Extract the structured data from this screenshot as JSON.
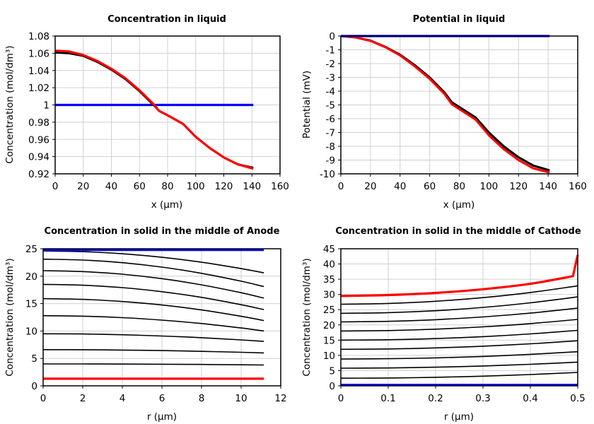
{
  "chart_data": [
    {
      "type": "line",
      "title": "Concentration in liquid",
      "xlabel": "x (µm)",
      "ylabel": "Concentration (mol/dm³)",
      "xlim": [
        0,
        160
      ],
      "ylim": [
        0.92,
        1.08
      ],
      "xticks": [
        0,
        20,
        40,
        60,
        80,
        100,
        120,
        140,
        160
      ],
      "xtick_labels": [
        "0",
        "20",
        "40",
        "60",
        "80",
        "100",
        "120",
        "140",
        "160"
      ],
      "yticks": [
        0.92,
        0.94,
        0.96,
        0.98,
        1.0,
        1.02,
        1.04,
        1.06,
        1.08
      ],
      "ytick_labels": [
        "0.92",
        "0.94",
        "0.96",
        "0.98",
        "1",
        "1.02",
        "1.04",
        "1.06",
        "1.08"
      ],
      "grid": true,
      "series": [
        {
          "color": "#0000ff",
          "x": [
            0,
            141
          ],
          "y": [
            1.0,
            1.0
          ]
        },
        {
          "color": "#000000",
          "x": [
            0,
            10,
            20,
            30,
            40,
            50,
            60,
            70,
            74,
            80,
            91,
            100,
            110,
            120,
            130,
            141
          ],
          "y": [
            1.061,
            1.06,
            1.057,
            1.05,
            1.041,
            1.03,
            1.016,
            1.0,
            0.993,
            0.988,
            0.978,
            0.963,
            0.95,
            0.939,
            0.931,
            0.927
          ]
        },
        {
          "color": "#ff0000",
          "x": [
            0,
            10,
            20,
            30,
            40,
            50,
            60,
            70,
            74,
            80,
            91,
            100,
            110,
            120,
            130,
            141
          ],
          "y": [
            1.063,
            1.062,
            1.058,
            1.051,
            1.042,
            1.031,
            1.017,
            1.001,
            0.993,
            0.988,
            0.978,
            0.963,
            0.95,
            0.939,
            0.931,
            0.926
          ]
        }
      ]
    },
    {
      "type": "line",
      "title": "Potential in liquid",
      "xlabel": "x (µm)",
      "ylabel": "Potential (mV)",
      "xlim": [
        0,
        160
      ],
      "ylim": [
        -10,
        0
      ],
      "xticks": [
        0,
        20,
        40,
        60,
        80,
        100,
        120,
        140,
        160
      ],
      "xtick_labels": [
        "0",
        "20",
        "40",
        "60",
        "80",
        "100",
        "120",
        "140",
        "160"
      ],
      "yticks": [
        0,
        -1,
        -2,
        -3,
        -4,
        -5,
        -6,
        -7,
        -8,
        -9,
        -10
      ],
      "ytick_labels": [
        "0",
        "-1",
        "-2",
        "-3",
        "-4",
        "-5",
        "-6",
        "-7",
        "-8",
        "-9",
        "-10"
      ],
      "grid": true,
      "series": [
        {
          "color": "#000000",
          "x": [
            0,
            10,
            20,
            30,
            40,
            50,
            60,
            70,
            75,
            80,
            91,
            100,
            110,
            120,
            130,
            141
          ],
          "y": [
            0,
            -0.1,
            -0.33,
            -0.78,
            -1.35,
            -2.12,
            -3.0,
            -4.1,
            -4.8,
            -5.15,
            -5.9,
            -7.0,
            -8.0,
            -8.8,
            -9.4,
            -9.75
          ]
        },
        {
          "color": "#ff0000",
          "x": [
            0,
            10,
            20,
            30,
            40,
            50,
            60,
            70,
            75,
            80,
            91,
            100,
            110,
            120,
            130,
            141
          ],
          "y": [
            0,
            -0.1,
            -0.35,
            -0.8,
            -1.4,
            -2.2,
            -3.1,
            -4.2,
            -4.95,
            -5.3,
            -6.05,
            -7.2,
            -8.2,
            -9.0,
            -9.6,
            -9.9
          ]
        },
        {
          "color": "#0000ff",
          "x": [
            0,
            141
          ],
          "y": [
            0,
            0
          ]
        }
      ]
    },
    {
      "type": "line",
      "title": "Concentration in solid in the middle of Anode",
      "xlabel": "r (µm)",
      "ylabel": "Concentration (mol/dm³)",
      "xlim": [
        0,
        12
      ],
      "ylim": [
        0,
        25
      ],
      "xticks": [
        0,
        2,
        4,
        6,
        8,
        10,
        12
      ],
      "xtick_labels": [
        "0",
        "2",
        "4",
        "6",
        "8",
        "10",
        "12"
      ],
      "yticks": [
        0,
        5,
        10,
        15,
        20,
        25
      ],
      "ytick_labels": [
        "0",
        "5",
        "10",
        "15",
        "20",
        "25"
      ],
      "grid": true,
      "series": [
        {
          "color": "#000000",
          "x": [
            0,
            2,
            4,
            6,
            8,
            10,
            11.15
          ],
          "y": [
            24.6,
            24.47,
            24.08,
            23.44,
            22.54,
            21.38,
            20.6
          ]
        },
        {
          "color": "#000000",
          "x": [
            0,
            2,
            4,
            6,
            8,
            10,
            11.15
          ],
          "y": [
            23.1,
            22.94,
            22.46,
            21.65,
            20.52,
            19.08,
            18.1
          ]
        },
        {
          "color": "#000000",
          "x": [
            0,
            2,
            4,
            6,
            8,
            10,
            11.15
          ],
          "y": [
            21.0,
            20.84,
            20.36,
            19.55,
            18.42,
            16.98,
            16.0
          ]
        },
        {
          "color": "#000000",
          "x": [
            0,
            2,
            4,
            6,
            8,
            10,
            11.15
          ],
          "y": [
            18.5,
            18.35,
            17.91,
            17.17,
            16.13,
            14.8,
            13.9
          ]
        },
        {
          "color": "#000000",
          "x": [
            0,
            2,
            4,
            6,
            8,
            10,
            11.15
          ],
          "y": [
            15.9,
            15.77,
            15.38,
            14.74,
            13.84,
            12.68,
            11.9
          ]
        },
        {
          "color": "#000000",
          "x": [
            0,
            2,
            4,
            6,
            8,
            10,
            11.15
          ],
          "y": [
            12.8,
            12.71,
            12.44,
            11.99,
            11.36,
            10.55,
            10.0
          ]
        },
        {
          "color": "#000000",
          "x": [
            0,
            2,
            4,
            6,
            8,
            10,
            11.15
          ],
          "y": [
            9.5,
            9.46,
            9.32,
            9.09,
            8.78,
            8.37,
            8.1
          ]
        },
        {
          "color": "#000000",
          "x": [
            0,
            2,
            4,
            6,
            8,
            10,
            11.15
          ],
          "y": [
            6.6,
            6.58,
            6.52,
            6.43,
            6.29,
            6.12,
            6.0
          ]
        },
        {
          "color": "#000000",
          "x": [
            0,
            2,
            4,
            6,
            8,
            10,
            11.15
          ],
          "y": [
            4.0,
            3.99,
            3.97,
            3.94,
            3.9,
            3.84,
            3.8
          ]
        },
        {
          "color": "#0000ff",
          "x": [
            0,
            11.15
          ],
          "y": [
            24.8,
            24.8
          ]
        },
        {
          "color": "#ff0000",
          "x": [
            0,
            11.15
          ],
          "y": [
            1.3,
            1.3
          ]
        }
      ]
    },
    {
      "type": "line",
      "title": "Concentration in solid in the middle of Cathode",
      "xlabel": "r (µm)",
      "ylabel": "Concentration (mol/dm³)",
      "xlim": [
        0,
        0.5
      ],
      "ylim": [
        0,
        45
      ],
      "xticks": [
        0,
        0.1,
        0.2,
        0.3,
        0.4,
        0.5
      ],
      "xtick_labels": [
        "0",
        "0.1",
        "0.2",
        "0.3",
        "0.4",
        "0.5"
      ],
      "yticks": [
        0,
        5,
        10,
        15,
        20,
        25,
        30,
        35,
        40,
        45
      ],
      "ytick_labels": [
        "0",
        "5",
        "10",
        "15",
        "20",
        "25",
        "30",
        "35",
        "40",
        "45"
      ],
      "grid": true,
      "series": [
        {
          "color": "#000000",
          "x": [
            0,
            0.1,
            0.2,
            0.3,
            0.4,
            0.5
          ],
          "y": [
            26.8,
            27.04,
            27.76,
            28.96,
            30.64,
            32.8
          ]
        },
        {
          "color": "#000000",
          "x": [
            0,
            0.1,
            0.2,
            0.3,
            0.4,
            0.5
          ],
          "y": [
            23.8,
            24.02,
            24.66,
            25.74,
            27.26,
            29.2
          ]
        },
        {
          "color": "#000000",
          "x": [
            0,
            0.1,
            0.2,
            0.3,
            0.4,
            0.5
          ],
          "y": [
            21.0,
            21.18,
            21.72,
            22.62,
            23.88,
            25.5
          ]
        },
        {
          "color": "#000000",
          "x": [
            0,
            0.1,
            0.2,
            0.3,
            0.4,
            0.5
          ],
          "y": [
            18.0,
            18.15,
            18.61,
            19.37,
            20.43,
            21.8
          ]
        },
        {
          "color": "#000000",
          "x": [
            0,
            0.1,
            0.2,
            0.3,
            0.4,
            0.5
          ],
          "y": [
            15.0,
            15.13,
            15.51,
            16.15,
            17.05,
            18.2
          ]
        },
        {
          "color": "#000000",
          "x": [
            0,
            0.1,
            0.2,
            0.3,
            0.4,
            0.5
          ],
          "y": [
            12.0,
            12.11,
            12.45,
            13.01,
            13.79,
            14.8
          ]
        },
        {
          "color": "#000000",
          "x": [
            0,
            0.1,
            0.2,
            0.3,
            0.4,
            0.5
          ],
          "y": [
            8.8,
            8.9,
            9.18,
            9.66,
            10.34,
            11.2
          ]
        },
        {
          "color": "#000000",
          "x": [
            0,
            0.1,
            0.2,
            0.3,
            0.4,
            0.5
          ],
          "y": [
            5.8,
            5.88,
            6.12,
            6.52,
            7.08,
            7.8
          ]
        },
        {
          "color": "#000000",
          "x": [
            0,
            0.1,
            0.2,
            0.3,
            0.4,
            0.5
          ],
          "y": [
            2.5,
            2.58,
            2.8,
            3.18,
            3.72,
            4.4
          ]
        },
        {
          "color": "#ff0000",
          "x": [
            0,
            0.1,
            0.2,
            0.3,
            0.4,
            0.49,
            0.5
          ],
          "y": [
            29.5,
            29.8,
            30.5,
            31.7,
            33.5,
            36.0,
            43.0
          ]
        },
        {
          "color": "#0000ff",
          "x": [
            0,
            0.5
          ],
          "y": [
            0.3,
            0.3
          ]
        }
      ]
    }
  ]
}
